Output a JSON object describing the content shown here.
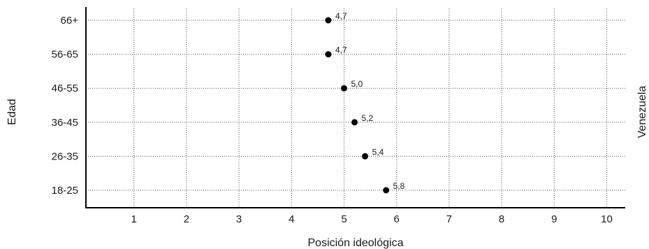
{
  "chart_data": {
    "type": "scatter",
    "categories": [
      "66+",
      "56-65",
      "46-55",
      "36-45",
      "26-35",
      "18-25"
    ],
    "values": [
      4.7,
      4.7,
      5.0,
      5.2,
      5.4,
      5.8
    ],
    "value_labels": [
      "4,7",
      "4,7",
      "5,0",
      "5,2",
      "5,4",
      "5,8"
    ],
    "x_ticks": [
      "1",
      "2",
      "3",
      "4",
      "5",
      "6",
      "7",
      "8",
      "9",
      "10"
    ],
    "xlabel": "Posición ideológica",
    "ylabel": "Edad",
    "right_label": "Venezuela",
    "xlim": [
      0,
      10.3
    ],
    "grid": true,
    "marker_color": "#000000"
  }
}
